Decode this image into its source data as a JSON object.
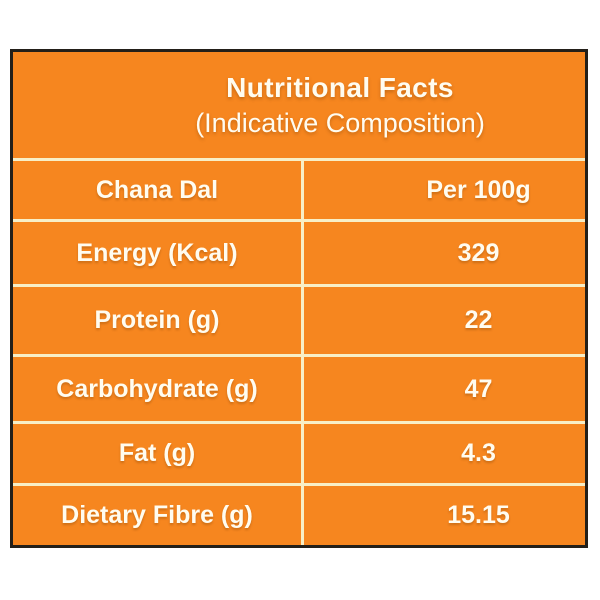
{
  "colors": {
    "panel_background": "#F6861F",
    "panel_border": "#231f19",
    "divider": "#F8EFC6",
    "text": "#FFFCF0",
    "page_background": "#FFFFFF"
  },
  "title": {
    "line1": "Nutritional Facts",
    "line2": "(Indicative Composition)"
  },
  "table": {
    "header": {
      "col1": "Chana Dal",
      "col2": "Per 100g"
    },
    "rows": [
      {
        "label": "Energy (Kcal)",
        "value": "329"
      },
      {
        "label": "Protein (g)",
        "value": "22"
      },
      {
        "label": "Carbohydrate (g)",
        "value": "47"
      },
      {
        "label": "Fat (g)",
        "value": "4.3"
      },
      {
        "label": "Dietary Fibre (g)",
        "value": "15.15"
      }
    ]
  }
}
